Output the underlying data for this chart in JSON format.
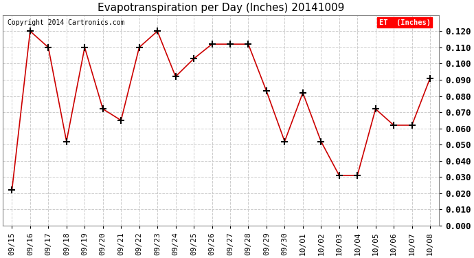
{
  "title": "Evapotranspiration per Day (Inches) 20141009",
  "copyright": "Copyright 2014 Cartronics.com",
  "legend_label": "ET  (Inches)",
  "legend_bg": "#ff0000",
  "legend_text_color": "#ffffff",
  "x_labels": [
    "09/15",
    "09/16",
    "09/17",
    "09/18",
    "09/19",
    "09/20",
    "09/21",
    "09/22",
    "09/23",
    "09/24",
    "09/25",
    "09/26",
    "09/27",
    "09/28",
    "09/29",
    "09/30",
    "10/01",
    "10/02",
    "10/03",
    "10/04",
    "10/05",
    "10/06",
    "10/07",
    "10/08"
  ],
  "y_values": [
    0.022,
    0.12,
    0.11,
    0.052,
    0.11,
    0.072,
    0.065,
    0.11,
    0.12,
    0.092,
    0.103,
    0.112,
    0.112,
    0.112,
    0.083,
    0.052,
    0.082,
    0.052,
    0.031,
    0.031,
    0.072,
    0.062,
    0.062,
    0.091
  ],
  "line_color": "#cc0000",
  "marker": "+",
  "marker_color": "#000000",
  "marker_size": 7,
  "marker_edge_width": 1.5,
  "line_width": 1.2,
  "ylim": [
    0.0,
    0.13
  ],
  "yticks": [
    0.0,
    0.01,
    0.02,
    0.03,
    0.04,
    0.05,
    0.06,
    0.07,
    0.08,
    0.09,
    0.1,
    0.11,
    0.12
  ],
  "bg_color": "#ffffff",
  "grid_color": "#cccccc",
  "grid_style": "--",
  "title_fontsize": 11,
  "tick_fontsize": 8,
  "copyright_fontsize": 7,
  "ytick_fontsize": 9,
  "ytick_fontweight": "bold"
}
